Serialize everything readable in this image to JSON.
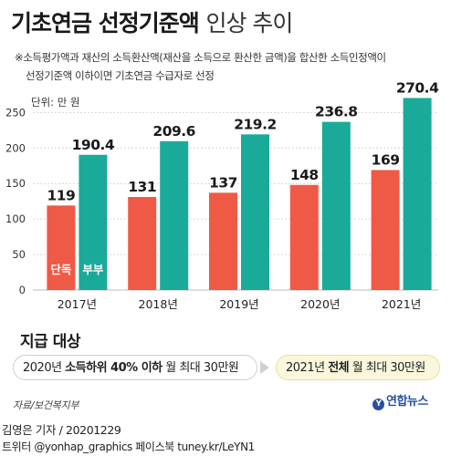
{
  "title": {
    "bold": "기초연금 선정기준액",
    "thin": "인상 추이"
  },
  "note": {
    "line1": "※소득평가액과 재산의 소득환산액(재산을 소득으로 환산한 금액)을 합산한 소득인정액이",
    "line2": "선정기준액 이하이면 기초연금 수급자로 선정"
  },
  "chart_data": {
    "type": "bar",
    "unit_label": "단위: 만 원",
    "categories": [
      "2017년",
      "2018년",
      "2019년",
      "2020년",
      "2021년"
    ],
    "series": [
      {
        "name": "단독",
        "values": [
          119,
          131,
          137,
          148,
          169
        ],
        "color": "#ef5a46"
      },
      {
        "name": "부부",
        "values": [
          190.4,
          209.6,
          219.2,
          236.8,
          270.4
        ],
        "color": "#1aaa9a"
      }
    ],
    "value_labels": {
      "단독": [
        "119",
        "131",
        "137",
        "148",
        "169"
      ],
      "부부": [
        "190.4",
        "209.6",
        "219.2",
        "236.8",
        "270.4"
      ]
    },
    "yticks": [
      0,
      50,
      100,
      150,
      200,
      250
    ],
    "ylim": [
      0,
      280
    ],
    "grid": true
  },
  "eligibility": {
    "title": "지급 대상",
    "box1": {
      "pre": "2020년 ",
      "strong": "소득하위 40% 이하",
      "post": " 월 최대 30만원"
    },
    "box2": {
      "pre": "2021년 ",
      "strong": "전체",
      "post": " 월 최대 30만원"
    }
  },
  "source": "자료/보건복지부",
  "logo": {
    "mark": "Y",
    "text": "연합뉴스"
  },
  "credits": {
    "line1": "김영은 기자 / 20201229",
    "line2": "트위터 @yonhap_graphics  페이스북 tuney.kr/LeYN1"
  }
}
